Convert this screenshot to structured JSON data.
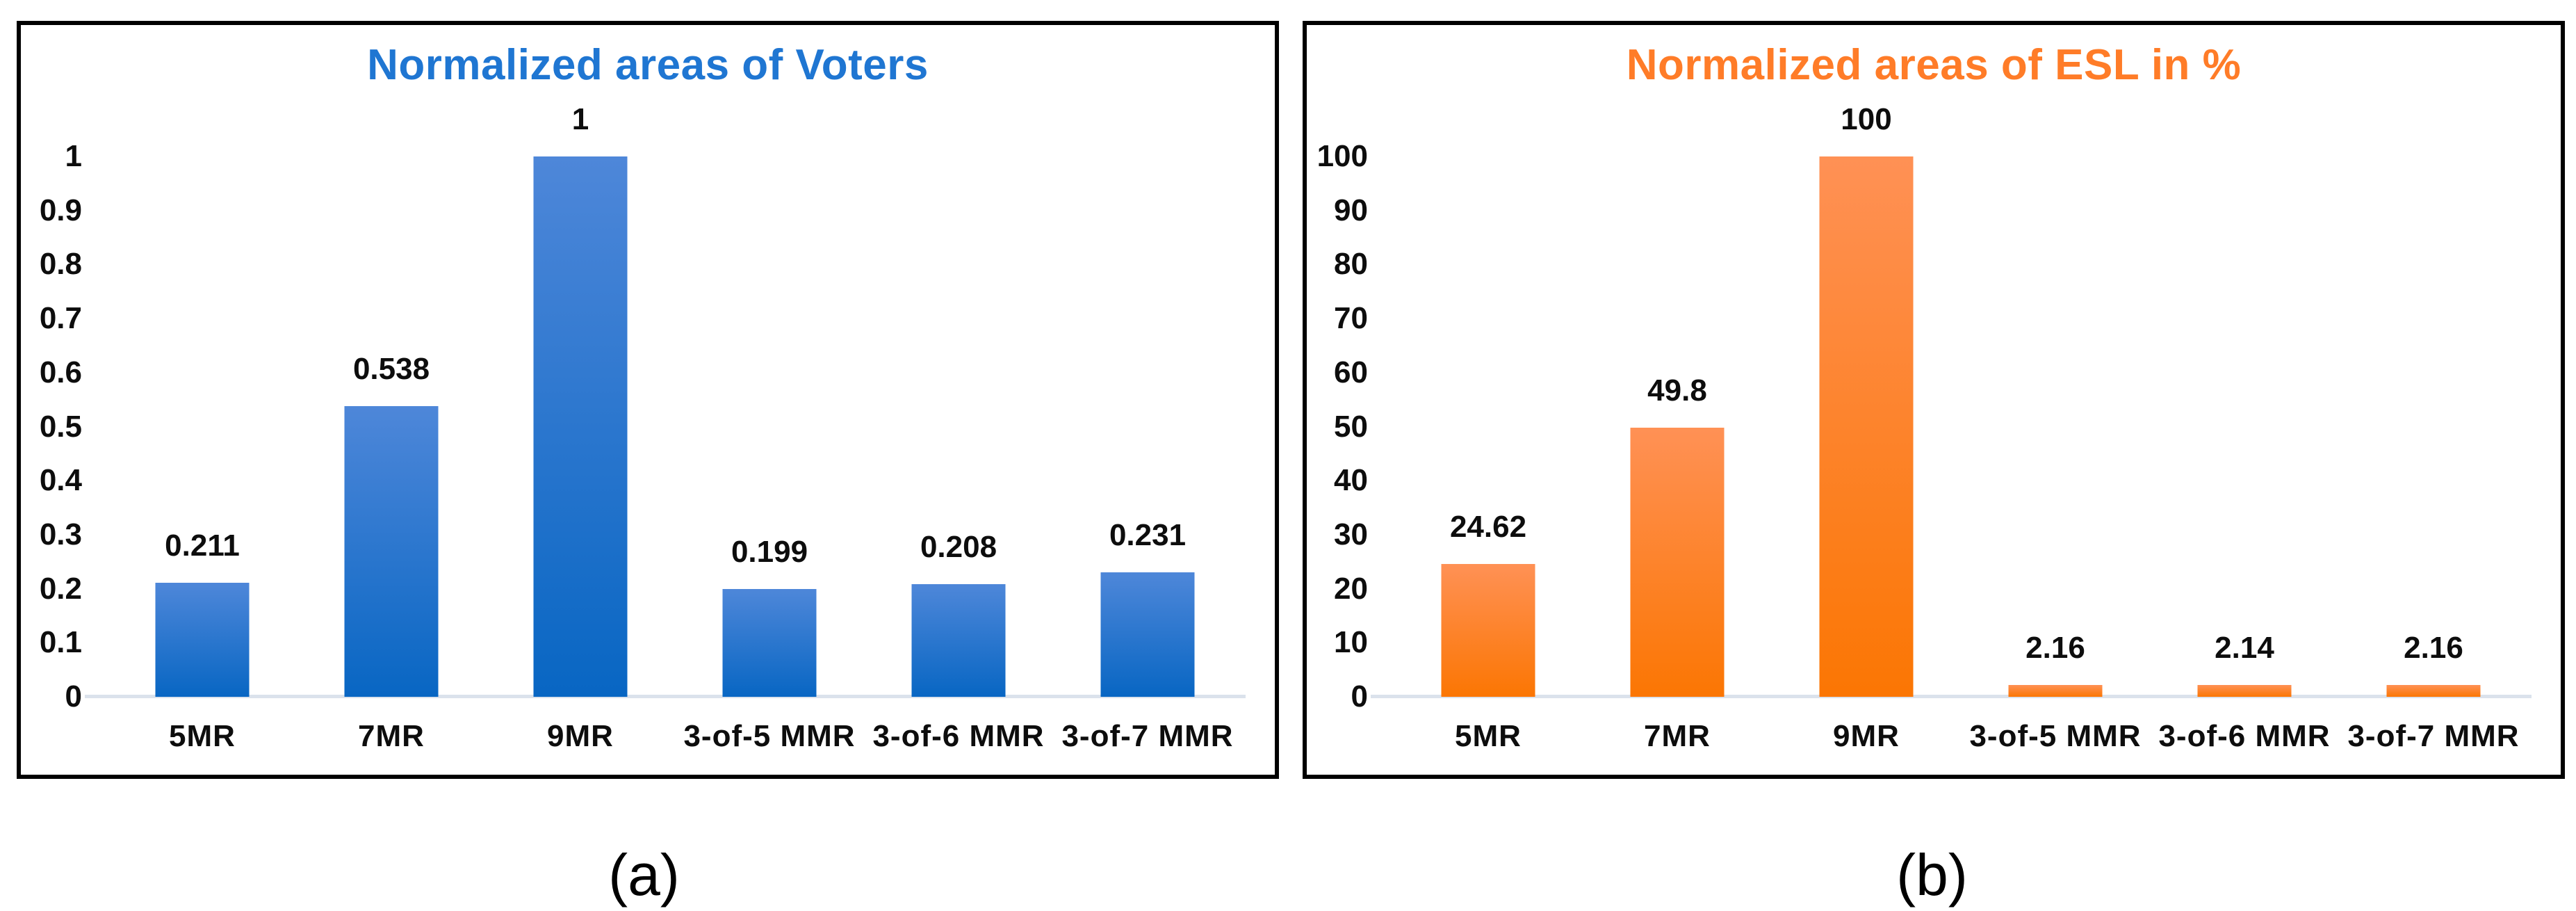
{
  "figure": {
    "captions": {
      "a": "(a)",
      "b": "(b)"
    }
  },
  "chart_data": [
    {
      "id": "voters",
      "type": "bar",
      "title": "Normalized areas of Voters",
      "title_color": "#1f76d2",
      "bar_gradient_top": "#4e87d9",
      "bar_gradient_bottom": "#0866c3",
      "categories": [
        "5MR",
        "7MR",
        "9MR",
        "3-of-5 MMR",
        "3-of-6 MMR",
        "3-of-7 MMR"
      ],
      "values": [
        0.211,
        0.538,
        1,
        0.199,
        0.208,
        0.231
      ],
      "data_labels": [
        "0.211",
        "0.538",
        "1",
        "0.199",
        "0.208",
        "0.231"
      ],
      "xlabel": "",
      "ylabel": "",
      "ylim": [
        0,
        1
      ],
      "ytick_labels": [
        "0",
        "0.1",
        "0.2",
        "0.3",
        "0.4",
        "0.5",
        "0.6",
        "0.7",
        "0.8",
        "0.9",
        "1"
      ],
      "grid": false,
      "legend": null,
      "baseline_color": "#dbe2ec",
      "label_color": "#0d0d0d"
    },
    {
      "id": "esl",
      "type": "bar",
      "title": "Normalized areas of ESL in %",
      "title_color": "#ff7c28",
      "bar_gradient_top": "#ff9155",
      "bar_gradient_bottom": "#fb7603",
      "categories": [
        "5MR",
        "7MR",
        "9MR",
        "3-of-5 MMR",
        "3-of-6 MMR",
        "3-of-7 MMR"
      ],
      "values": [
        24.62,
        49.8,
        100,
        2.16,
        2.14,
        2.16
      ],
      "data_labels": [
        "24.62",
        "49.8",
        "100",
        "2.16",
        "2.14",
        "2.16"
      ],
      "xlabel": "",
      "ylabel": "",
      "ylim": [
        0,
        100
      ],
      "ytick_labels": [
        "0",
        "10",
        "20",
        "30",
        "40",
        "50",
        "60",
        "70",
        "80",
        "90",
        "100"
      ],
      "grid": false,
      "legend": null,
      "baseline_color": "#dbe2ec",
      "label_color": "#0d0d0d"
    }
  ]
}
